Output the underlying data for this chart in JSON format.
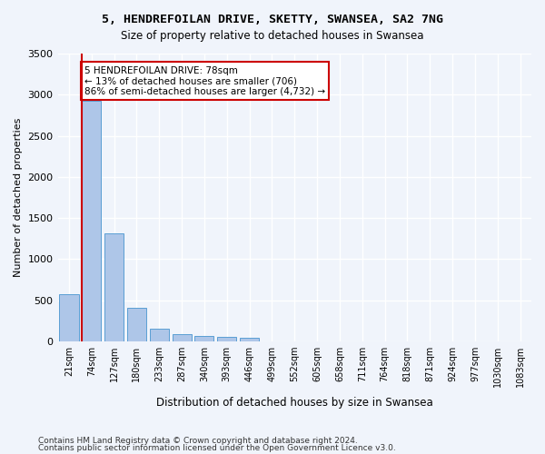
{
  "title_line1": "5, HENDREFOILAN DRIVE, SKETTY, SWANSEA, SA2 7NG",
  "title_line2": "Size of property relative to detached houses in Swansea",
  "xlabel": "Distribution of detached houses by size in Swansea",
  "ylabel": "Number of detached properties",
  "bar_labels": [
    "21sqm",
    "74sqm",
    "127sqm",
    "180sqm",
    "233sqm",
    "287sqm",
    "340sqm",
    "393sqm",
    "446sqm",
    "499sqm",
    "552sqm",
    "605sqm",
    "658sqm",
    "711sqm",
    "764sqm",
    "818sqm",
    "871sqm",
    "924sqm",
    "977sqm",
    "1030sqm",
    "1083sqm"
  ],
  "bar_values": [
    575,
    2920,
    1310,
    405,
    155,
    85,
    60,
    55,
    45,
    0,
    0,
    0,
    0,
    0,
    0,
    0,
    0,
    0,
    0,
    0,
    0
  ],
  "bar_color": "#aec6e8",
  "bar_edge_color": "#5a9fd4",
  "vline_x": 1,
  "vline_color": "#cc0000",
  "annotation_text": "5 HENDREFOILAN DRIVE: 78sqm\n← 13% of detached houses are smaller (706)\n86% of semi-detached houses are larger (4,732) →",
  "annotation_box_color": "#ffffff",
  "annotation_box_edge": "#cc0000",
  "ylim": [
    0,
    3500
  ],
  "yticks": [
    0,
    500,
    1000,
    1500,
    2000,
    2500,
    3000,
    3500
  ],
  "background_color": "#f0f4fb",
  "grid_color": "#ffffff",
  "footer_line1": "Contains HM Land Registry data © Crown copyright and database right 2024.",
  "footer_line2": "Contains public sector information licensed under the Open Government Licence v3.0."
}
